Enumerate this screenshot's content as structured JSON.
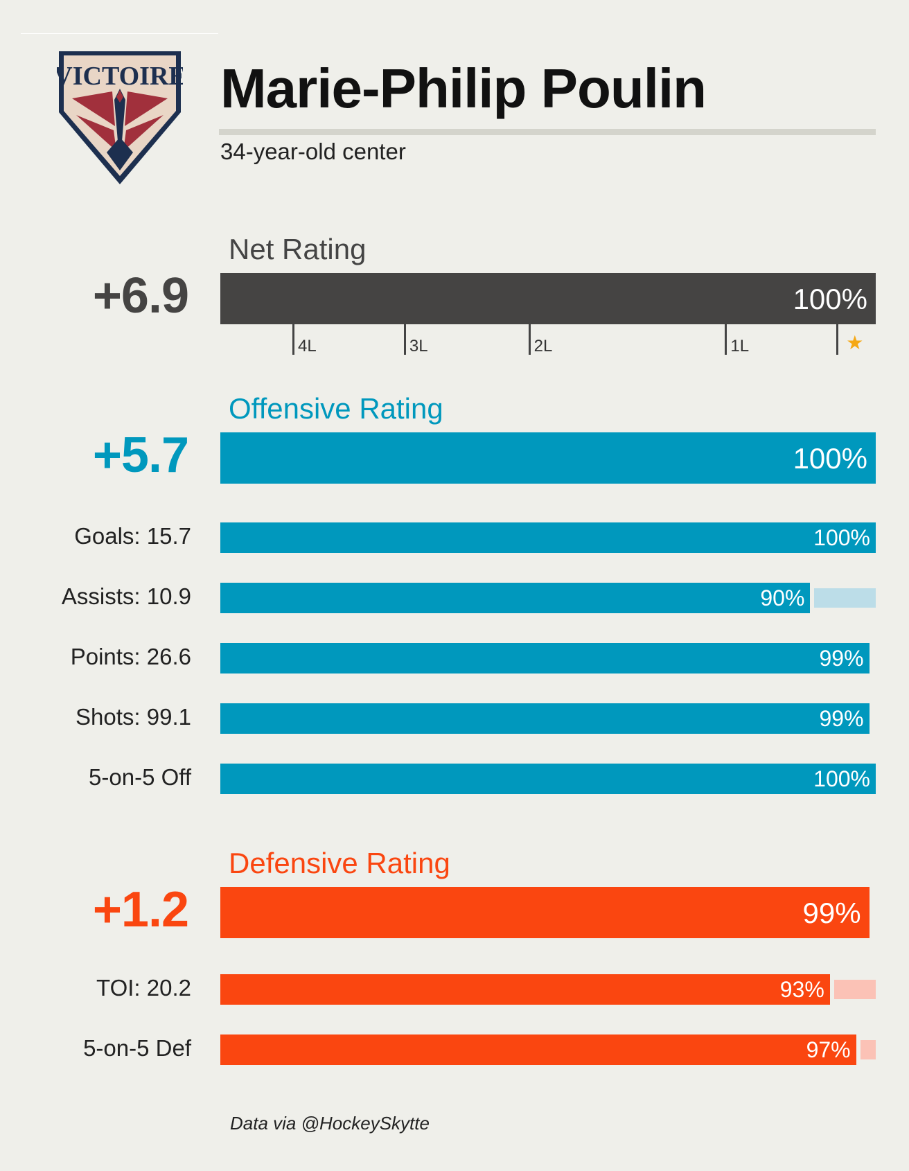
{
  "header": {
    "team_logo_text": "VICTOIRE",
    "player_name": "Marie-Philip Poulin",
    "subtitle": "34-year-old center"
  },
  "colors": {
    "net": "#454443",
    "offense": "#0098bd",
    "offense_ghost": "#bcdde8",
    "defense": "#fa4610",
    "defense_ghost": "#fbc2b6",
    "star": "#f5a815",
    "logo_navy": "#1d2f4f",
    "logo_red": "#a1303c"
  },
  "chart_data": {
    "type": "bar",
    "sections": [
      {
        "key": "net",
        "title": "Net Rating",
        "rating": "+6.9",
        "percentile": 100,
        "percentile_label": "100%",
        "line_markers": [
          {
            "label": "4L",
            "percentile": 11
          },
          {
            "label": "3L",
            "percentile": 28
          },
          {
            "label": "2L",
            "percentile": 47
          },
          {
            "label": "1L",
            "percentile": 77
          },
          {
            "label": "★",
            "percentile": 94,
            "icon": "star-icon"
          }
        ]
      },
      {
        "key": "offense",
        "title": "Offensive Rating",
        "rating": "+5.7",
        "percentile": 100,
        "percentile_label": "100%",
        "components": [
          {
            "label": "Goals: 15.7",
            "percentile": 100,
            "percentile_label": "100%",
            "ghost_percentile": null
          },
          {
            "label": "Assists: 10.9",
            "percentile": 90,
            "percentile_label": "90%",
            "ghost_percentile": 100
          },
          {
            "label": "Points: 26.6",
            "percentile": 99,
            "percentile_label": "99%",
            "ghost_percentile": null
          },
          {
            "label": "Shots: 99.1",
            "percentile": 99,
            "percentile_label": "99%",
            "ghost_percentile": null
          },
          {
            "label": "5-on-5 Off",
            "percentile": 100,
            "percentile_label": "100%",
            "ghost_percentile": null
          }
        ]
      },
      {
        "key": "defense",
        "title": "Defensive Rating",
        "rating": "+1.2",
        "percentile": 99,
        "percentile_label": "99%",
        "components": [
          {
            "label": "TOI: 20.2",
            "percentile": 93,
            "percentile_label": "93%",
            "ghost_percentile": 100
          },
          {
            "label": "5-on-5 Def",
            "percentile": 97,
            "percentile_label": "97%",
            "ghost_percentile": 100
          }
        ]
      }
    ]
  },
  "footer": {
    "source": "Data via @HockeySkytte"
  }
}
